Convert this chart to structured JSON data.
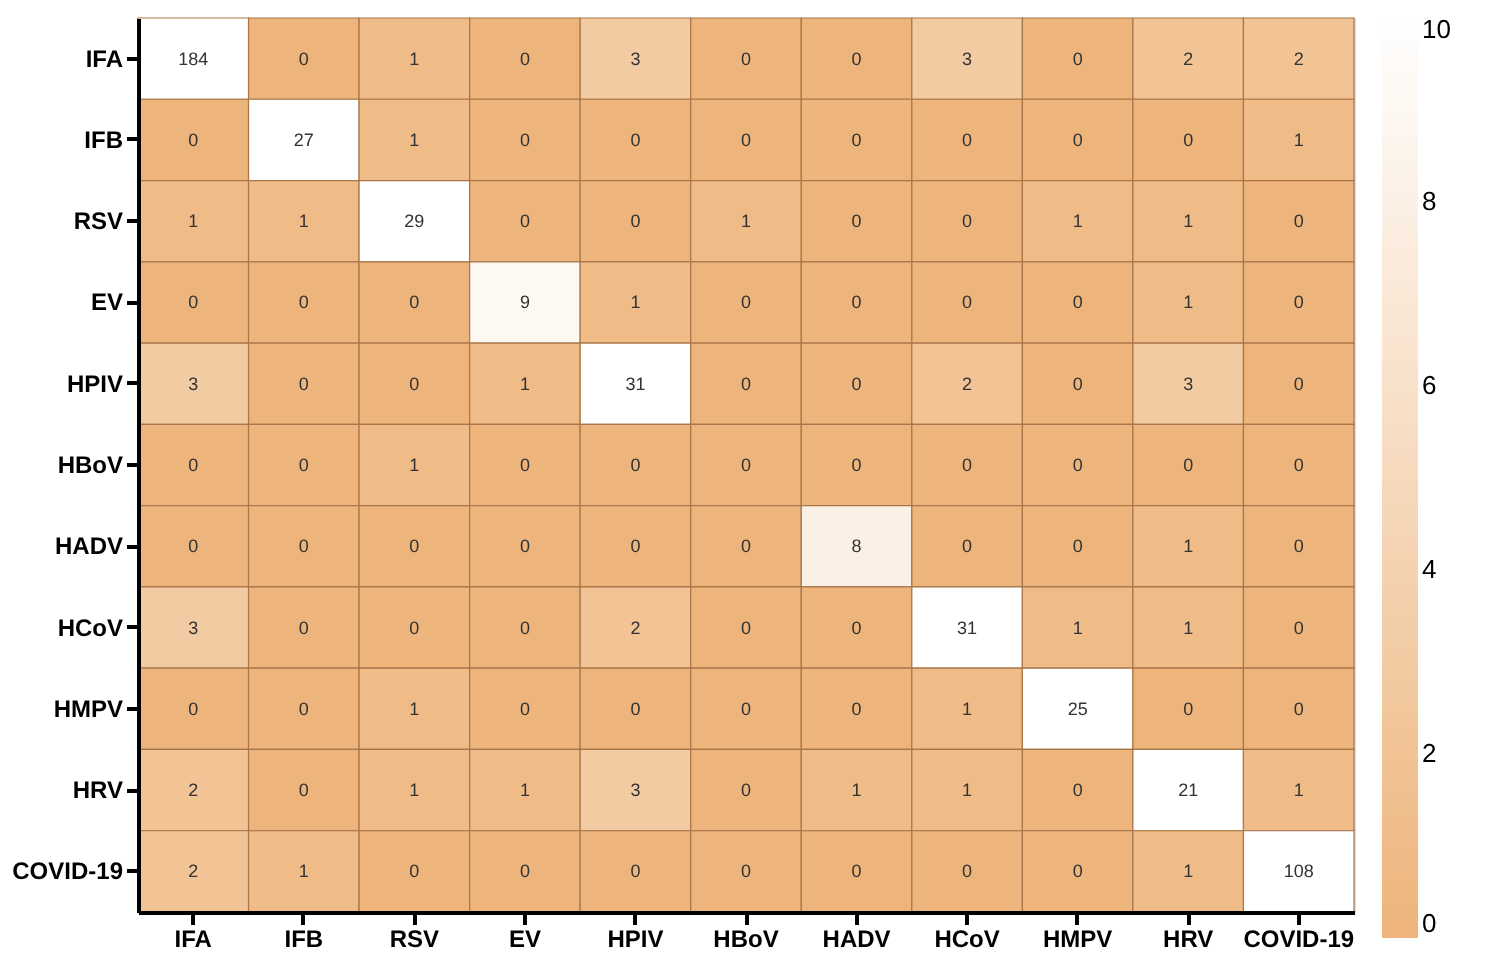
{
  "chart_data": {
    "type": "heatmap",
    "categories": [
      "IFA",
      "IFB",
      "RSV",
      "EV",
      "HPIV",
      "HBoV",
      "HADV",
      "HCoV",
      "HMPV",
      "HRV",
      "COVID-19"
    ],
    "y_categories": [
      "IFA",
      "IFB",
      "RSV",
      "EV",
      "HPIV",
      "HBoV",
      "HADV",
      "HCoV",
      "HMPV",
      "HRV",
      "COVID-19"
    ],
    "cells": [
      [
        184,
        0,
        1,
        0,
        3,
        0,
        0,
        3,
        0,
        2,
        2
      ],
      [
        0,
        27,
        1,
        0,
        0,
        0,
        0,
        0,
        0,
        0,
        1
      ],
      [
        1,
        1,
        29,
        0,
        0,
        1,
        0,
        0,
        1,
        1,
        0
      ],
      [
        0,
        0,
        0,
        9,
        1,
        0,
        0,
        0,
        0,
        1,
        0
      ],
      [
        3,
        0,
        0,
        1,
        31,
        0,
        0,
        2,
        0,
        3,
        0
      ],
      [
        0,
        0,
        1,
        0,
        0,
        0,
        0,
        0,
        0,
        0,
        0
      ],
      [
        0,
        0,
        0,
        0,
        0,
        0,
        8,
        0,
        0,
        1,
        0
      ],
      [
        3,
        0,
        0,
        0,
        2,
        0,
        0,
        31,
        1,
        1,
        0
      ],
      [
        0,
        0,
        1,
        0,
        0,
        0,
        0,
        1,
        25,
        0,
        0
      ],
      [
        2,
        0,
        1,
        1,
        3,
        0,
        1,
        1,
        0,
        21,
        1
      ],
      [
        2,
        1,
        0,
        0,
        0,
        0,
        0,
        0,
        0,
        1,
        108
      ]
    ],
    "colors": [
      "#edb47b",
      "#ffffff"
    ],
    "clim": [
      0,
      10
    ],
    "cticks": [
      0,
      2,
      4,
      6,
      8,
      10
    ],
    "data_labels": true
  }
}
